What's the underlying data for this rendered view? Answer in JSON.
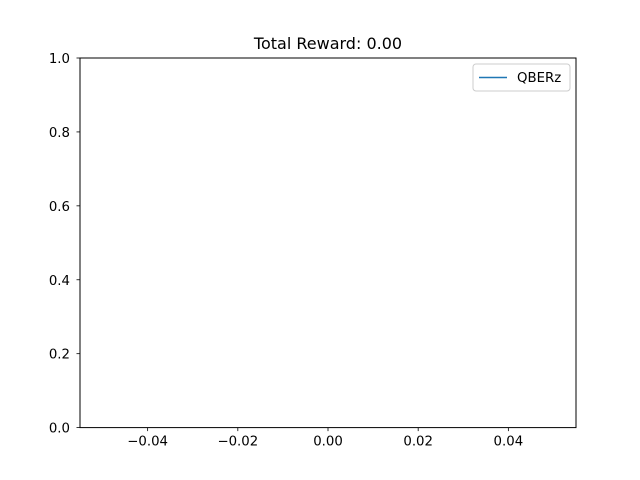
{
  "chart_data": {
    "type": "line",
    "title": "Total Reward: 0.00",
    "xlabel": "",
    "ylabel": "",
    "xlim": [
      -0.055,
      0.055
    ],
    "ylim": [
      0.0,
      1.0
    ],
    "xticks": [
      -0.04,
      -0.02,
      0.0,
      0.02,
      0.04
    ],
    "xtick_labels": [
      "−0.04",
      "−0.02",
      "0.00",
      "0.02",
      "0.04"
    ],
    "yticks": [
      0.0,
      0.2,
      0.4,
      0.6,
      0.8,
      1.0
    ],
    "ytick_labels": [
      "0.0",
      "0.2",
      "0.4",
      "0.6",
      "0.8",
      "1.0"
    ],
    "grid": false,
    "legend": {
      "placement": "upper right"
    },
    "series": [
      {
        "name": "QBERz",
        "color": "#1f77b4",
        "x": [],
        "y": []
      }
    ]
  }
}
